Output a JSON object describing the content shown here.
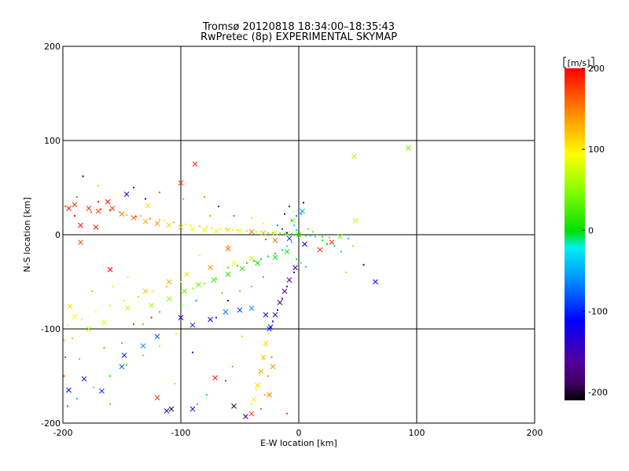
{
  "chart_data": {
    "type": "scatter",
    "title": "Tromsø 20120818 18:34:00–18:35:43",
    "subtitle": "RwPretec (8p) EXPERIMENTAL SKYMAP",
    "xlabel": "E-W location [km]",
    "ylabel": "N-S location [km]",
    "xlim": [
      -200,
      200
    ],
    "ylim": [
      -200,
      200
    ],
    "xticks": [
      "-200",
      "-100",
      "0",
      "100",
      "200"
    ],
    "yticks": [
      "-200",
      "-100",
      "0",
      "100",
      "200"
    ],
    "grid": true,
    "colorbar": {
      "label": "[m/s]",
      "range": [
        -210,
        200
      ],
      "ticks": [
        "200",
        "100",
        "0",
        "-100",
        "-200"
      ],
      "tick_values": [
        200,
        100,
        0,
        -100,
        -200
      ]
    },
    "series": [
      {
        "marker": "x",
        "points": [
          [
            -195,
            28,
            190
          ],
          [
            -190,
            32,
            180
          ],
          [
            -185,
            10,
            195
          ],
          [
            -178,
            28,
            185
          ],
          [
            -170,
            25,
            170
          ],
          [
            -162,
            35,
            200
          ],
          [
            -158,
            28,
            175
          ],
          [
            -150,
            22,
            150
          ],
          [
            -140,
            18,
            160
          ],
          [
            -130,
            14,
            130
          ],
          [
            -120,
            12,
            140
          ],
          [
            -110,
            10,
            110
          ],
          [
            -100,
            8,
            120
          ],
          [
            -90,
            6,
            100
          ],
          [
            -80,
            5,
            90
          ],
          [
            -70,
            4,
            80
          ],
          [
            -60,
            5,
            110
          ],
          [
            -50,
            4,
            95
          ],
          [
            -40,
            3,
            150
          ],
          [
            -30,
            2,
            120
          ],
          [
            -20,
            2,
            100
          ],
          [
            -10,
            1,
            60
          ],
          [
            0,
            0,
            20
          ],
          [
            -88,
            75,
            190
          ],
          [
            -100,
            55,
            180
          ],
          [
            -128,
            31,
            110
          ],
          [
            -146,
            43,
            -120
          ],
          [
            -194,
            -76,
            110
          ],
          [
            -190,
            -87,
            95
          ],
          [
            -178,
            -100,
            60
          ],
          [
            -165,
            -93,
            80
          ],
          [
            -145,
            -78,
            70
          ],
          [
            -125,
            -75,
            60
          ],
          [
            -110,
            -68,
            50
          ],
          [
            -97,
            -60,
            40
          ],
          [
            -85,
            -53,
            30
          ],
          [
            -72,
            -48,
            20
          ],
          [
            -60,
            -42,
            15
          ],
          [
            -48,
            -36,
            10
          ],
          [
            -35,
            -30,
            5
          ],
          [
            -20,
            -24,
            0
          ],
          [
            -10,
            -18,
            10
          ],
          [
            -195,
            -165,
            -110
          ],
          [
            -182,
            -153,
            -150
          ],
          [
            -167,
            -166,
            -100
          ],
          [
            -150,
            -140,
            -80
          ],
          [
            -132,
            -118,
            -60
          ],
          [
            -120,
            -108,
            -80
          ],
          [
            -100,
            -88,
            -120
          ],
          [
            -90,
            -96,
            -100
          ],
          [
            -75,
            -90,
            -130
          ],
          [
            -62,
            -82,
            -70
          ],
          [
            -50,
            -80,
            -90
          ],
          [
            -40,
            -78,
            -60
          ],
          [
            -28,
            -85,
            -110
          ],
          [
            -25,
            -100,
            -90
          ],
          [
            -28,
            -115,
            110
          ],
          [
            -30,
            -130,
            120
          ],
          [
            -32,
            -145,
            130
          ],
          [
            -35,
            -160,
            110
          ],
          [
            -38,
            -175,
            100
          ],
          [
            -22,
            -140,
            140
          ],
          [
            -25,
            -170,
            150
          ],
          [
            -40,
            -190,
            170
          ],
          [
            -55,
            -182,
            -200
          ],
          [
            -45,
            -193,
            -180
          ],
          [
            -108,
            -185,
            -200
          ],
          [
            -120,
            -173,
            180
          ],
          [
            -90,
            -185,
            -140
          ],
          [
            -71,
            -152,
            190
          ],
          [
            -160,
            -37,
            200
          ],
          [
            -112,
            -187,
            -130
          ],
          [
            -148,
            -128,
            -100
          ],
          [
            -60,
            -15,
            160
          ],
          [
            -20,
            -6,
            160
          ],
          [
            -8,
            -4,
            -100
          ],
          [
            5,
            -10,
            -120
          ],
          [
            18,
            -16,
            190
          ],
          [
            28,
            -8,
            180
          ],
          [
            35,
            -2,
            40
          ],
          [
            47,
            83,
            60
          ],
          [
            48,
            15,
            70
          ],
          [
            65,
            -50,
            -110
          ],
          [
            93,
            92,
            40
          ],
          [
            -130,
            -60,
            120
          ],
          [
            -110,
            -50,
            130
          ],
          [
            -95,
            -42,
            110
          ],
          [
            -75,
            -35,
            140
          ],
          [
            -55,
            -30,
            90
          ],
          [
            -40,
            -25,
            70
          ],
          [
            -5,
            15,
            50
          ],
          [
            3,
            25,
            -50
          ],
          [
            -3,
            -35,
            -150
          ],
          [
            -8,
            -48,
            -170
          ],
          [
            -12,
            -60,
            -160
          ],
          [
            -16,
            -72,
            -180
          ],
          [
            -20,
            -85,
            -140
          ],
          [
            -24,
            -98,
            -120
          ],
          [
            -185,
            -8,
            170
          ],
          [
            -172,
            8,
            190
          ]
        ]
      },
      {
        "marker": "dot",
        "points": [
          [
            -198,
            30,
            150
          ],
          [
            -190,
            20,
            200
          ],
          [
            -176,
            24,
            160
          ],
          [
            -168,
            27,
            185
          ],
          [
            -160,
            26,
            190
          ],
          [
            -152,
            24,
            140
          ],
          [
            -146,
            21,
            130
          ],
          [
            -138,
            19,
            170
          ],
          [
            -134,
            20,
            120
          ],
          [
            -126,
            17,
            150
          ],
          [
            -118,
            16,
            110
          ],
          [
            -114,
            15,
            95
          ],
          [
            -106,
            13,
            130
          ],
          [
            -96,
            11,
            100
          ],
          [
            -92,
            10,
            90
          ],
          [
            -84,
            9,
            115
          ],
          [
            -78,
            8,
            80
          ],
          [
            -74,
            7,
            105
          ],
          [
            -66,
            6,
            95
          ],
          [
            -62,
            6,
            70
          ],
          [
            -56,
            5,
            85
          ],
          [
            -52,
            5,
            100
          ],
          [
            -44,
            4,
            60
          ],
          [
            -36,
            3,
            75
          ],
          [
            -32,
            3,
            90
          ],
          [
            -26,
            2,
            50
          ],
          [
            -22,
            2,
            40
          ],
          [
            -16,
            2,
            55
          ],
          [
            -12,
            1,
            30
          ],
          [
            -6,
            1,
            20
          ],
          [
            -2,
            0,
            10
          ],
          [
            2,
            0,
            5
          ],
          [
            6,
            -1,
            0
          ],
          [
            10,
            -1,
            -10
          ],
          [
            14,
            -2,
            -20
          ],
          [
            20,
            -2,
            10
          ],
          [
            26,
            -3,
            30
          ],
          [
            -2,
            5,
            -10
          ],
          [
            -4,
            10,
            -30
          ],
          [
            -6,
            15,
            -40
          ],
          [
            -2,
            20,
            -60
          ],
          [
            2,
            22,
            -50
          ],
          [
            -8,
            30,
            -140
          ],
          [
            -12,
            22,
            -160
          ],
          [
            4,
            34,
            -200
          ],
          [
            -60,
            -35,
            20
          ],
          [
            -52,
            -33,
            10
          ],
          [
            -44,
            -30,
            15
          ],
          [
            -38,
            -28,
            5
          ],
          [
            -32,
            -26,
            0
          ],
          [
            -26,
            -23,
            -10
          ],
          [
            -20,
            -20,
            -5
          ],
          [
            -14,
            -16,
            -15
          ],
          [
            -10,
            -12,
            -20
          ],
          [
            -6,
            -8,
            -30
          ],
          [
            -100,
            -50,
            100
          ],
          [
            -112,
            -55,
            120
          ],
          [
            -124,
            -60,
            80
          ],
          [
            -136,
            -66,
            60
          ],
          [
            -148,
            -70,
            70
          ],
          [
            -160,
            -75,
            110
          ],
          [
            -172,
            -82,
            90
          ],
          [
            -184,
            -90,
            80
          ],
          [
            -196,
            -96,
            100
          ],
          [
            -90,
            -57,
            50
          ],
          [
            -80,
            -52,
            40
          ],
          [
            -70,
            -47,
            30
          ],
          [
            -104,
            -105,
            80
          ],
          [
            -118,
            -118,
            60
          ],
          [
            -132,
            -128,
            40
          ],
          [
            -146,
            -138,
            20
          ],
          [
            -160,
            -150,
            10
          ],
          [
            -174,
            -162,
            -20
          ],
          [
            -188,
            -174,
            -40
          ],
          [
            -196,
            -182,
            -60
          ],
          [
            -70,
            -88,
            -100
          ],
          [
            -60,
            -70,
            -120
          ],
          [
            -50,
            -60,
            130
          ],
          [
            -40,
            -55,
            140
          ],
          [
            -30,
            -45,
            150
          ],
          [
            -4,
            -40,
            -150
          ],
          [
            -10,
            -55,
            -160
          ],
          [
            -14,
            -68,
            -170
          ],
          [
            -18,
            -80,
            -180
          ],
          [
            -22,
            -92,
            -140
          ],
          [
            -26,
            -105,
            80
          ],
          [
            -28,
            -118,
            110
          ],
          [
            -30,
            -132,
            100
          ],
          [
            -33,
            -148,
            120
          ],
          [
            -36,
            -164,
            90
          ],
          [
            -40,
            -180,
            110
          ],
          [
            -23,
            -130,
            150
          ],
          [
            -26,
            -150,
            140
          ],
          [
            -29,
            -170,
            130
          ],
          [
            -32,
            -185,
            160
          ],
          [
            8,
            6,
            30
          ],
          [
            12,
            3,
            40
          ],
          [
            16,
            0,
            20
          ],
          [
            20,
            -6,
            10
          ],
          [
            24,
            -10,
            0
          ],
          [
            30,
            -12,
            -20
          ],
          [
            36,
            -18,
            -30
          ],
          [
            -130,
            38,
            -180
          ],
          [
            -118,
            45,
            160
          ],
          [
            -80,
            40,
            150
          ],
          [
            -98,
            38,
            30
          ],
          [
            -140,
            50,
            -150
          ],
          [
            -170,
            52,
            120
          ],
          [
            -183,
            62,
            -200
          ],
          [
            -68,
            30,
            -160
          ],
          [
            -55,
            20,
            170
          ],
          [
            -40,
            18,
            110
          ],
          [
            -30,
            12,
            90
          ],
          [
            -60,
            -12,
            140
          ],
          [
            -84,
            -22,
            100
          ],
          [
            -150,
            -115,
            20
          ],
          [
            -90,
            -125,
            -110
          ],
          [
            -78,
            -170,
            -30
          ],
          [
            -105,
            -158,
            60
          ],
          [
            -160,
            -180,
            140
          ],
          [
            -198,
            -130,
            170
          ],
          [
            -192,
            -110,
            120
          ],
          [
            -165,
            -120,
            150
          ],
          [
            -140,
            -95,
            180
          ],
          [
            -125,
            -88,
            190
          ],
          [
            -48,
            -108,
            60
          ],
          [
            -56,
            -140,
            30
          ],
          [
            -62,
            -155,
            -70
          ],
          [
            -2,
            -26,
            5
          ],
          [
            2,
            -30,
            -20
          ],
          [
            6,
            -34,
            -40
          ],
          [
            -10,
            2,
            -120
          ],
          [
            -14,
            6,
            -80
          ],
          [
            -18,
            10,
            -60
          ],
          [
            -28,
            -5,
            170
          ],
          [
            42,
            -4,
            -40
          ],
          [
            46,
            -12,
            50
          ],
          [
            55,
            -32,
            -200
          ],
          [
            40,
            -40,
            60
          ],
          [
            -170,
            35,
            180
          ],
          [
            -188,
            40,
            160
          ],
          [
            -75,
            20,
            140
          ],
          [
            -65,
            -62,
            30
          ],
          [
            -87,
            -70,
            -60
          ],
          [
            -100,
            -75,
            10
          ],
          [
            -118,
            -82,
            -30
          ],
          [
            -132,
            -95,
            30
          ],
          [
            -145,
            -45,
            80
          ],
          [
            -158,
            -55,
            100
          ],
          [
            -175,
            -60,
            120
          ],
          [
            -199,
            -112,
            130
          ],
          [
            -199,
            -150,
            160
          ],
          [
            -186,
            -132,
            140
          ],
          [
            -86,
            -180,
            -40
          ],
          [
            -10,
            -190,
            170
          ]
        ]
      }
    ]
  }
}
